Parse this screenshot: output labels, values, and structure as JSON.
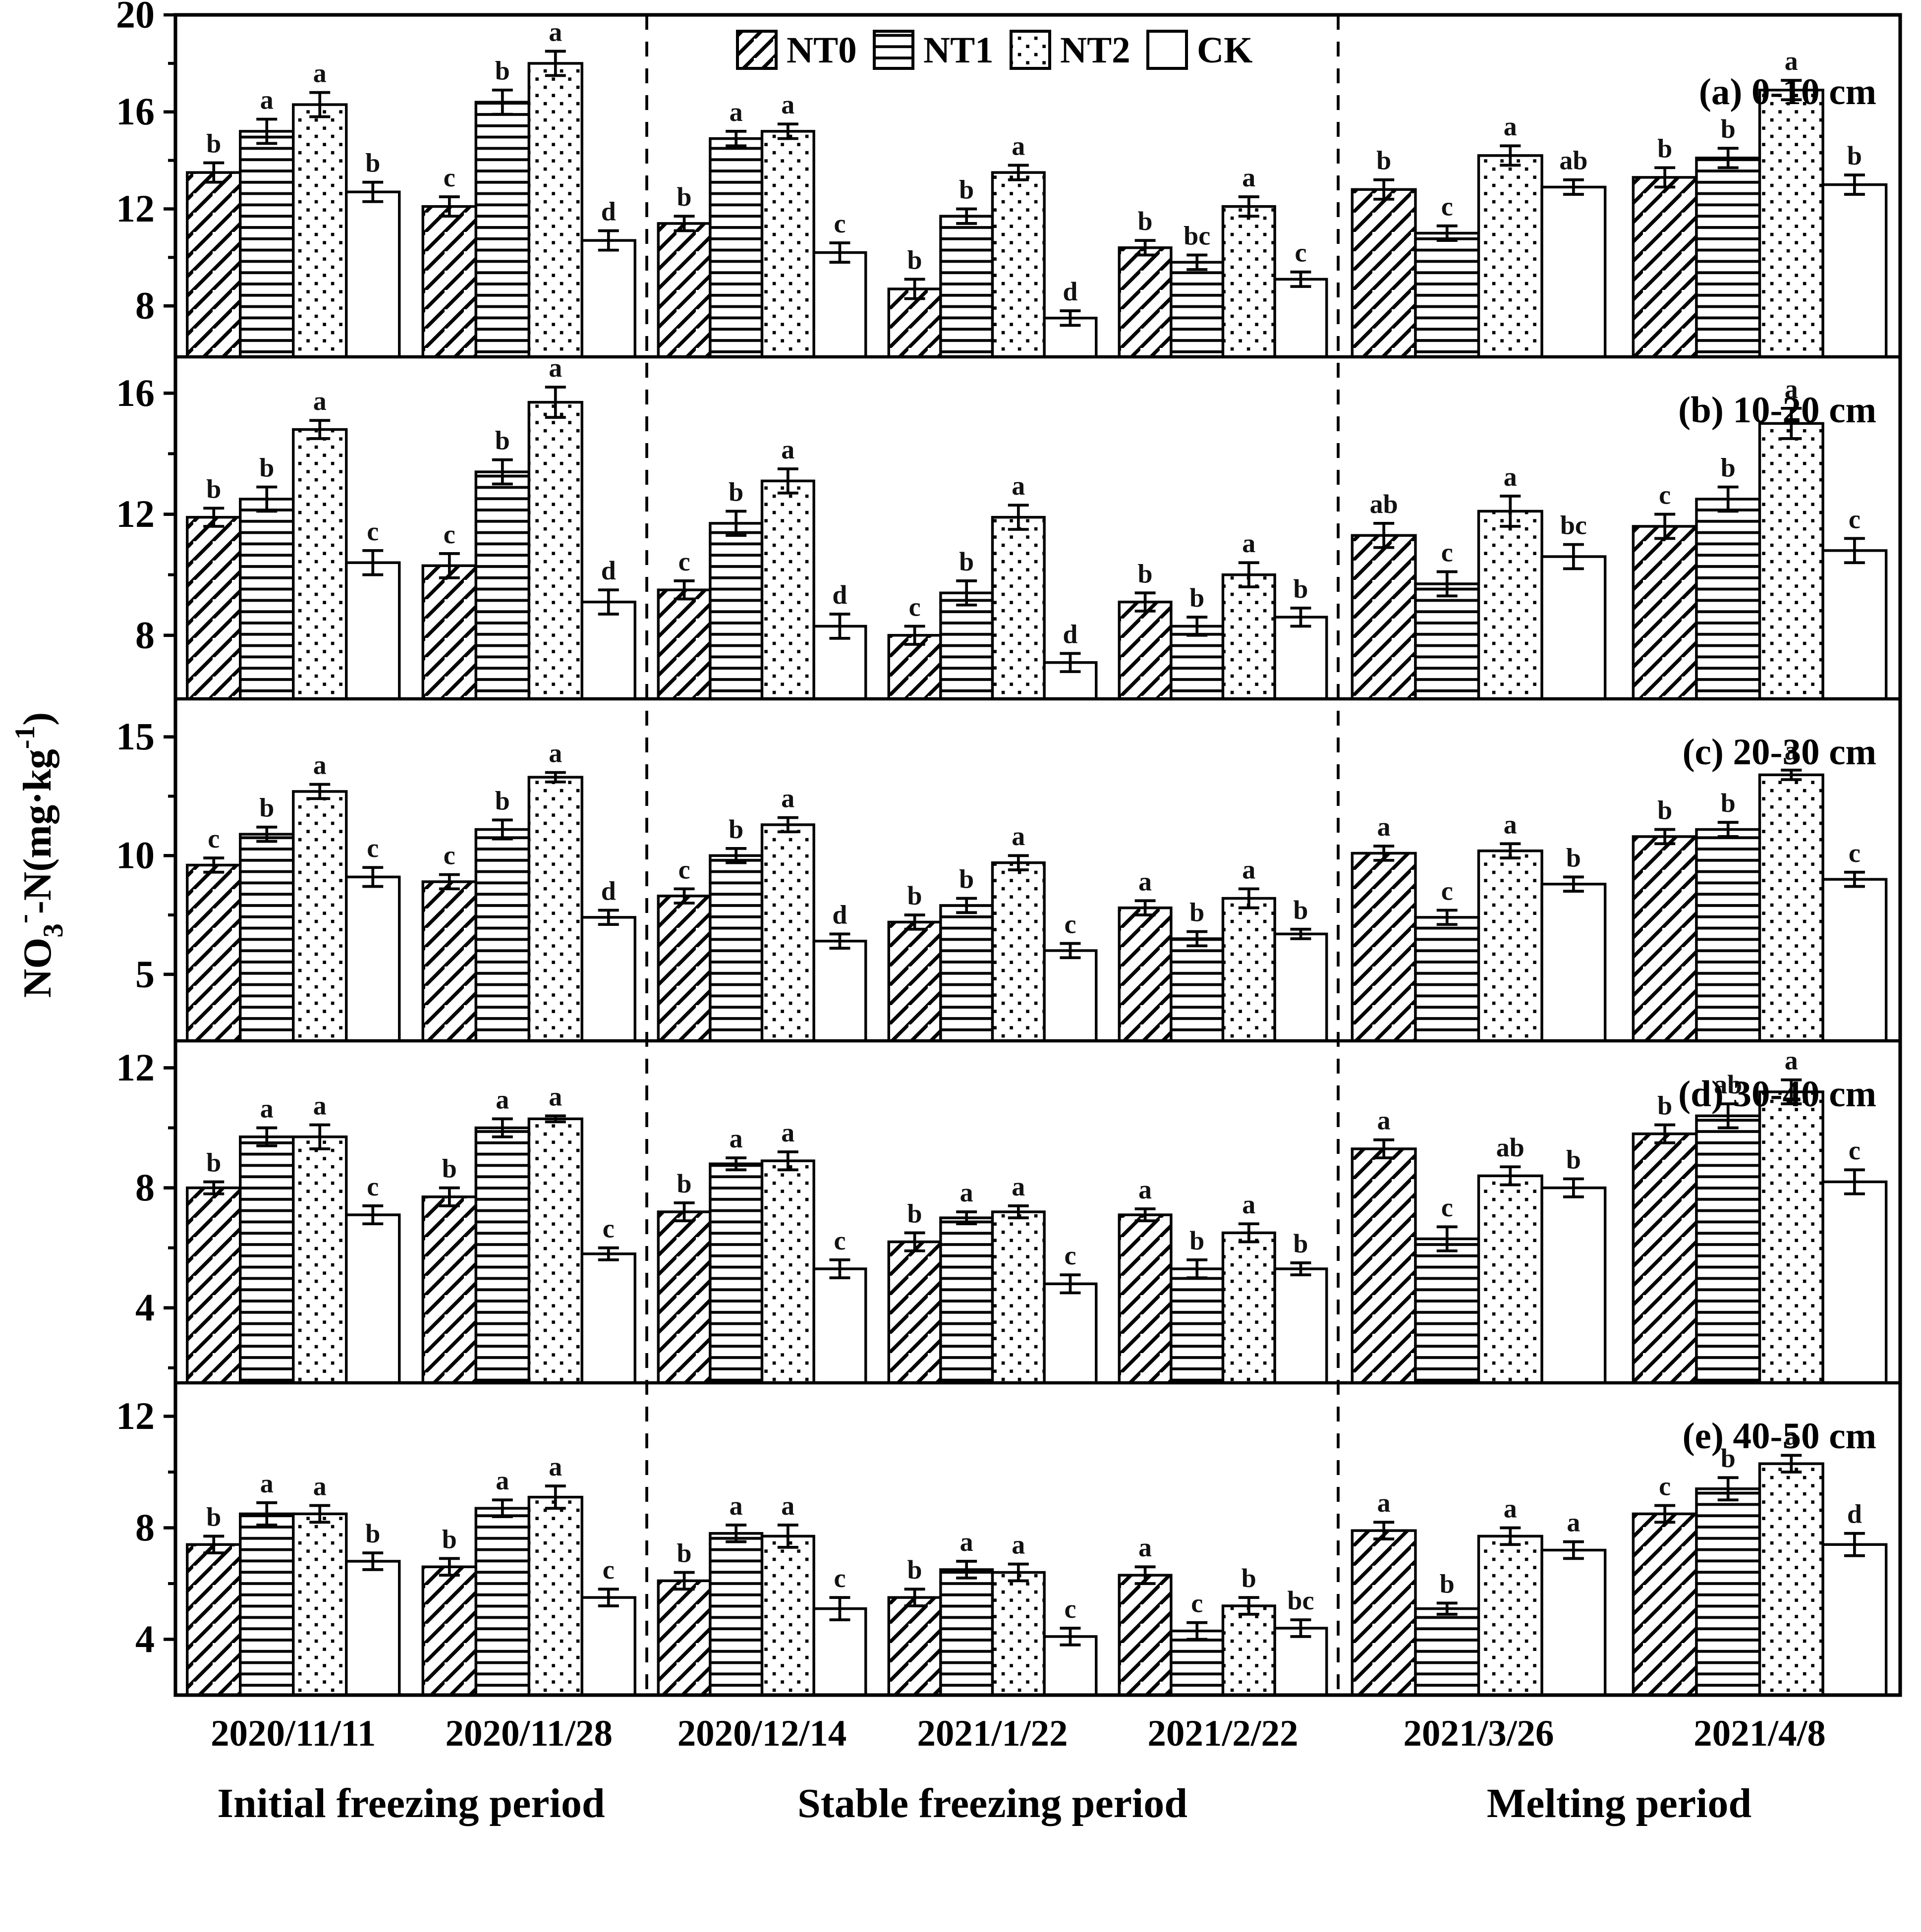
{
  "colors": {
    "ink": "#000000",
    "paper": "#ffffff",
    "letter": "#111111"
  },
  "legend": {
    "items": [
      {
        "label": "NT0",
        "pattern": "diagonal"
      },
      {
        "label": "NT1",
        "pattern": "hlines"
      },
      {
        "label": "NT2",
        "pattern": "dots"
      },
      {
        "label": "CK",
        "pattern": "plain"
      }
    ]
  },
  "chart_data": {
    "type": "bar",
    "title": "",
    "ylabel": "NO3--N(mg·kg-1)",
    "ylabel_rich": {
      "pre": "NO",
      "sub": "3",
      "charge": "-",
      "mid": "-N(mg·kg",
      "sup": "-1",
      "post": ")"
    },
    "grid": false,
    "legend_position": "top-inside",
    "series_names": [
      "NT0",
      "NT1",
      "NT2",
      "CK"
    ],
    "categories": [
      "2020/11/11",
      "2020/11/28",
      "2020/12/14",
      "2021/1/22",
      "2021/2/22",
      "2021/3/26",
      "2021/4/8"
    ],
    "periods": [
      {
        "label": "Initial freezing period",
        "group_indexes": [
          0,
          1
        ]
      },
      {
        "label": "Stable freezing period",
        "group_indexes": [
          2,
          3,
          4
        ]
      },
      {
        "label": "Melting period",
        "group_indexes": [
          5,
          6
        ]
      }
    ],
    "bar_fields": [
      "value",
      "error",
      "sig_letter"
    ],
    "panels": [
      {
        "label": "(a) 0-10 cm",
        "ylim": [
          5.9,
          20
        ],
        "yticks": [
          8,
          12,
          16,
          20
        ],
        "minorticks": [
          10,
          14,
          18
        ],
        "groups": [
          {
            "date": "2020/11/11",
            "bars": [
              [
                13.5,
                0.4,
                "b"
              ],
              [
                15.2,
                0.5,
                "a"
              ],
              [
                16.3,
                0.5,
                "a"
              ],
              [
                12.7,
                0.4,
                "b"
              ]
            ]
          },
          {
            "date": "2020/11/28",
            "bars": [
              [
                12.1,
                0.4,
                "c"
              ],
              [
                16.4,
                0.5,
                "b"
              ],
              [
                18.0,
                0.5,
                "a"
              ],
              [
                10.7,
                0.4,
                "d"
              ]
            ]
          },
          {
            "date": "2020/12/14",
            "bars": [
              [
                11.4,
                0.3,
                "b"
              ],
              [
                14.9,
                0.3,
                "a"
              ],
              [
                15.2,
                0.3,
                "a"
              ],
              [
                10.2,
                0.4,
                "c"
              ]
            ]
          },
          {
            "date": "2021/1/22",
            "bars": [
              [
                8.7,
                0.4,
                "b"
              ],
              [
                11.7,
                0.3,
                "b"
              ],
              [
                13.5,
                0.3,
                "a"
              ],
              [
                7.5,
                0.3,
                "d"
              ]
            ]
          },
          {
            "date": "2021/2/22",
            "bars": [
              [
                10.4,
                0.3,
                "b"
              ],
              [
                9.8,
                0.3,
                "bc"
              ],
              [
                12.1,
                0.4,
                "a"
              ],
              [
                9.1,
                0.3,
                "c"
              ]
            ]
          },
          {
            "date": "2021/3/26",
            "bars": [
              [
                12.8,
                0.4,
                "b"
              ],
              [
                11.0,
                0.3,
                "c"
              ],
              [
                14.2,
                0.4,
                "a"
              ],
              [
                12.9,
                0.3,
                "ab"
              ]
            ]
          },
          {
            "date": "2021/4/8",
            "bars": [
              [
                13.3,
                0.4,
                "b"
              ],
              [
                14.1,
                0.4,
                "b"
              ],
              [
                16.9,
                0.4,
                "a"
              ],
              [
                13.0,
                0.4,
                "b"
              ]
            ]
          }
        ]
      },
      {
        "label": "(b) 10-20 cm",
        "ylim": [
          5.9,
          17.2
        ],
        "yticks": [
          8,
          12,
          16
        ],
        "minorticks": [
          10,
          14
        ],
        "groups": [
          {
            "date": "2020/11/11",
            "bars": [
              [
                11.9,
                0.3,
                "b"
              ],
              [
                12.5,
                0.4,
                "b"
              ],
              [
                14.8,
                0.3,
                "a"
              ],
              [
                10.4,
                0.4,
                "c"
              ]
            ]
          },
          {
            "date": "2020/11/28",
            "bars": [
              [
                10.3,
                0.4,
                "c"
              ],
              [
                13.4,
                0.4,
                "b"
              ],
              [
                15.7,
                0.5,
                "a"
              ],
              [
                9.1,
                0.4,
                "d"
              ]
            ]
          },
          {
            "date": "2020/12/14",
            "bars": [
              [
                9.5,
                0.3,
                "c"
              ],
              [
                11.7,
                0.4,
                "b"
              ],
              [
                13.1,
                0.4,
                "a"
              ],
              [
                8.3,
                0.4,
                "d"
              ]
            ]
          },
          {
            "date": "2021/1/22",
            "bars": [
              [
                8.0,
                0.3,
                "c"
              ],
              [
                9.4,
                0.4,
                "b"
              ],
              [
                11.9,
                0.4,
                "a"
              ],
              [
                7.1,
                0.3,
                "d"
              ]
            ]
          },
          {
            "date": "2021/2/22",
            "bars": [
              [
                9.1,
                0.3,
                "b"
              ],
              [
                8.3,
                0.3,
                "b"
              ],
              [
                10.0,
                0.4,
                "a"
              ],
              [
                8.6,
                0.3,
                "b"
              ]
            ]
          },
          {
            "date": "2021/3/26",
            "bars": [
              [
                11.3,
                0.4,
                "ab"
              ],
              [
                9.7,
                0.4,
                "c"
              ],
              [
                12.1,
                0.5,
                "a"
              ],
              [
                10.6,
                0.4,
                "bc"
              ]
            ]
          },
          {
            "date": "2021/4/8",
            "bars": [
              [
                11.6,
                0.4,
                "c"
              ],
              [
                12.5,
                0.4,
                "b"
              ],
              [
                15.0,
                0.5,
                "a"
              ],
              [
                10.8,
                0.4,
                "c"
              ]
            ]
          }
        ]
      },
      {
        "label": "(c) 20-30 cm",
        "ylim": [
          2.2,
          16.6
        ],
        "yticks": [
          5,
          10,
          15
        ],
        "minorticks": [
          7.5,
          12.5
        ],
        "groups": [
          {
            "date": "2020/11/11",
            "bars": [
              [
                9.6,
                0.3,
                "c"
              ],
              [
                10.9,
                0.3,
                "b"
              ],
              [
                12.7,
                0.3,
                "a"
              ],
              [
                9.1,
                0.4,
                "c"
              ]
            ]
          },
          {
            "date": "2020/11/28",
            "bars": [
              [
                8.9,
                0.3,
                "c"
              ],
              [
                11.1,
                0.4,
                "b"
              ],
              [
                13.3,
                0.2,
                "a"
              ],
              [
                7.4,
                0.3,
                "d"
              ]
            ]
          },
          {
            "date": "2020/12/14",
            "bars": [
              [
                8.3,
                0.3,
                "c"
              ],
              [
                10.0,
                0.3,
                "b"
              ],
              [
                11.3,
                0.3,
                "a"
              ],
              [
                6.4,
                0.3,
                "d"
              ]
            ]
          },
          {
            "date": "2021/1/22",
            "bars": [
              [
                7.2,
                0.3,
                "b"
              ],
              [
                7.9,
                0.3,
                "b"
              ],
              [
                9.7,
                0.3,
                "a"
              ],
              [
                6.0,
                0.3,
                "c"
              ]
            ]
          },
          {
            "date": "2021/2/22",
            "bars": [
              [
                7.8,
                0.3,
                "a"
              ],
              [
                6.5,
                0.3,
                "b"
              ],
              [
                8.2,
                0.4,
                "a"
              ],
              [
                6.7,
                0.2,
                "b"
              ]
            ]
          },
          {
            "date": "2021/3/26",
            "bars": [
              [
                10.1,
                0.3,
                "a"
              ],
              [
                7.4,
                0.3,
                "c"
              ],
              [
                10.2,
                0.3,
                "a"
              ],
              [
                8.8,
                0.3,
                "b"
              ]
            ]
          },
          {
            "date": "2021/4/8",
            "bars": [
              [
                10.8,
                0.3,
                "b"
              ],
              [
                11.1,
                0.3,
                "b"
              ],
              [
                13.4,
                0.2,
                "a"
              ],
              [
                9.0,
                0.3,
                "c"
              ]
            ]
          }
        ]
      },
      {
        "label": "(d) 30-40 cm",
        "ylim": [
          1.5,
          12.9
        ],
        "yticks": [
          4,
          8,
          12
        ],
        "minorticks": [
          2,
          6,
          10
        ],
        "groups": [
          {
            "date": "2020/11/11",
            "bars": [
              [
                8.0,
                0.2,
                "b"
              ],
              [
                9.7,
                0.3,
                "a"
              ],
              [
                9.7,
                0.4,
                "a"
              ],
              [
                7.1,
                0.3,
                "c"
              ]
            ]
          },
          {
            "date": "2020/11/28",
            "bars": [
              [
                7.7,
                0.3,
                "b"
              ],
              [
                10.0,
                0.3,
                "a"
              ],
              [
                10.3,
                0.1,
                "a"
              ],
              [
                5.8,
                0.2,
                "c"
              ]
            ]
          },
          {
            "date": "2020/12/14",
            "bars": [
              [
                7.2,
                0.3,
                "b"
              ],
              [
                8.8,
                0.2,
                "a"
              ],
              [
                8.9,
                0.3,
                "a"
              ],
              [
                5.3,
                0.3,
                "c"
              ]
            ]
          },
          {
            "date": "2021/1/22",
            "bars": [
              [
                6.2,
                0.3,
                "b"
              ],
              [
                7.0,
                0.2,
                "a"
              ],
              [
                7.2,
                0.2,
                "a"
              ],
              [
                4.8,
                0.3,
                "c"
              ]
            ]
          },
          {
            "date": "2021/2/22",
            "bars": [
              [
                7.1,
                0.2,
                "a"
              ],
              [
                5.3,
                0.3,
                "b"
              ],
              [
                6.5,
                0.3,
                "a"
              ],
              [
                5.3,
                0.2,
                "b"
              ]
            ]
          },
          {
            "date": "2021/3/26",
            "bars": [
              [
                9.3,
                0.3,
                "a"
              ],
              [
                6.3,
                0.4,
                "c"
              ],
              [
                8.4,
                0.3,
                "ab"
              ],
              [
                8.0,
                0.3,
                "b"
              ]
            ]
          },
          {
            "date": "2021/4/8",
            "bars": [
              [
                9.8,
                0.3,
                "b"
              ],
              [
                10.4,
                0.4,
                "ab"
              ],
              [
                11.2,
                0.4,
                "a"
              ],
              [
                8.2,
                0.4,
                "c"
              ]
            ]
          }
        ]
      },
      {
        "label": "(e) 40-50 cm",
        "ylim": [
          2.0,
          13.2
        ],
        "yticks": [
          4,
          8,
          12
        ],
        "minorticks": [
          6,
          10
        ],
        "groups": [
          {
            "date": "2020/11/11",
            "bars": [
              [
                7.4,
                0.3,
                "b"
              ],
              [
                8.5,
                0.4,
                "a"
              ],
              [
                8.5,
                0.3,
                "a"
              ],
              [
                6.8,
                0.3,
                "b"
              ]
            ]
          },
          {
            "date": "2020/11/28",
            "bars": [
              [
                6.6,
                0.3,
                "b"
              ],
              [
                8.7,
                0.3,
                "a"
              ],
              [
                9.1,
                0.4,
                "a"
              ],
              [
                5.5,
                0.3,
                "c"
              ]
            ]
          },
          {
            "date": "2020/12/14",
            "bars": [
              [
                6.1,
                0.3,
                "b"
              ],
              [
                7.8,
                0.3,
                "a"
              ],
              [
                7.7,
                0.4,
                "a"
              ],
              [
                5.1,
                0.4,
                "c"
              ]
            ]
          },
          {
            "date": "2021/1/22",
            "bars": [
              [
                5.5,
                0.3,
                "b"
              ],
              [
                6.5,
                0.3,
                "a"
              ],
              [
                6.4,
                0.3,
                "a"
              ],
              [
                4.1,
                0.3,
                "c"
              ]
            ]
          },
          {
            "date": "2021/2/22",
            "bars": [
              [
                6.3,
                0.3,
                "a"
              ],
              [
                4.3,
                0.3,
                "c"
              ],
              [
                5.2,
                0.3,
                "b"
              ],
              [
                4.4,
                0.3,
                "bc"
              ]
            ]
          },
          {
            "date": "2021/3/26",
            "bars": [
              [
                7.9,
                0.3,
                "a"
              ],
              [
                5.1,
                0.2,
                "b"
              ],
              [
                7.7,
                0.3,
                "a"
              ],
              [
                7.2,
                0.3,
                "a"
              ]
            ]
          },
          {
            "date": "2021/4/8",
            "bars": [
              [
                8.5,
                0.3,
                "c"
              ],
              [
                9.4,
                0.4,
                "b"
              ],
              [
                10.3,
                0.3,
                "a"
              ],
              [
                7.4,
                0.4,
                "d"
              ]
            ]
          }
        ]
      }
    ]
  }
}
